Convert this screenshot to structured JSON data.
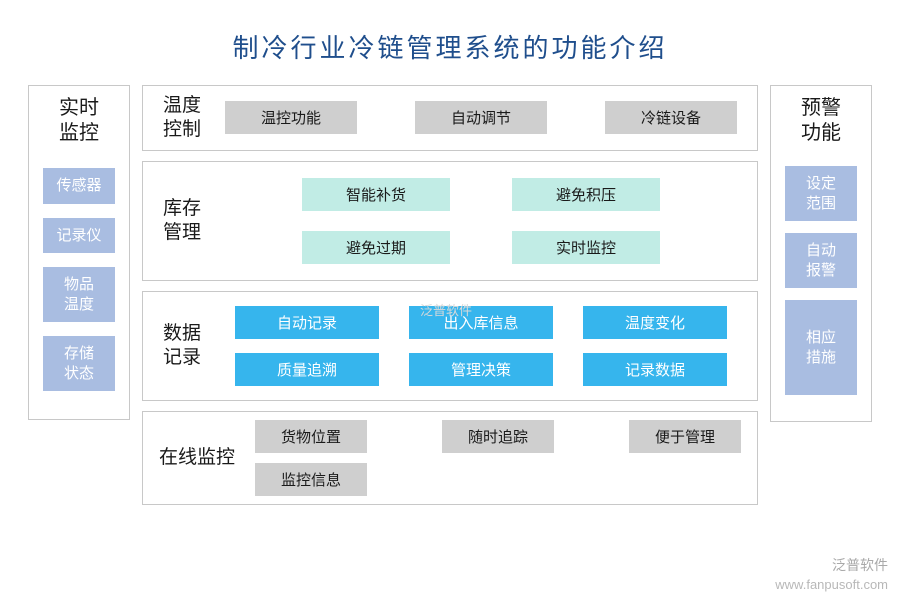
{
  "title": "制冷行业冷链管理系统的功能介绍",
  "colors": {
    "title": "#1f4e8c",
    "border": "#c8c8c8",
    "side_box_bg": "#a9bde1",
    "side_box_fg": "#ffffff",
    "gray_chip_bg": "#cfcfcf",
    "gray_chip_fg": "#1a1a1a",
    "teal_chip_bg": "#c1ece5",
    "teal_chip_fg": "#1a1a1a",
    "blue_chip_bg": "#36b5ed",
    "blue_chip_fg": "#ffffff",
    "page_bg": "#ffffff"
  },
  "typography": {
    "title_fontsize": 26,
    "section_label_fontsize": 19,
    "side_head_fontsize": 20,
    "chip_fontsize": 15
  },
  "left": {
    "head": "实时\n监控",
    "items": [
      "传感器",
      "记录仪",
      "物品\n温度",
      "存储\n状态"
    ]
  },
  "right": {
    "head": "预警\n功能",
    "items": [
      {
        "label": "设定\n范围",
        "tall": false
      },
      {
        "label": "自动\n报警",
        "tall": false
      },
      {
        "label": "相应\n措施",
        "tall": true
      }
    ]
  },
  "sections": [
    {
      "label": "温度\n控制",
      "layout": "row3",
      "chip_style": "gray",
      "items": [
        "温控功能",
        "自动调节",
        "冷链设备"
      ]
    },
    {
      "label": "库存\n管理",
      "layout": "grid2",
      "chip_style": "teal",
      "items": [
        "智能补货",
        "避免积压",
        "避免过期",
        "实时监控"
      ]
    },
    {
      "label": "数据\n记录",
      "layout": "grid3",
      "chip_style": "blue",
      "items": [
        "自动记录",
        "出入库信息",
        "温度变化",
        "质量追溯",
        "管理决策",
        "记录数据"
      ]
    },
    {
      "label": "在线监控",
      "label_wide": true,
      "layout": "row4",
      "chip_style": "gray-s",
      "items": [
        "货物位置",
        "随时追踪",
        "便于管理",
        "监控信息"
      ]
    }
  ],
  "watermark": {
    "brand": "泛普软件",
    "url": "www.fanpusoft.com"
  }
}
